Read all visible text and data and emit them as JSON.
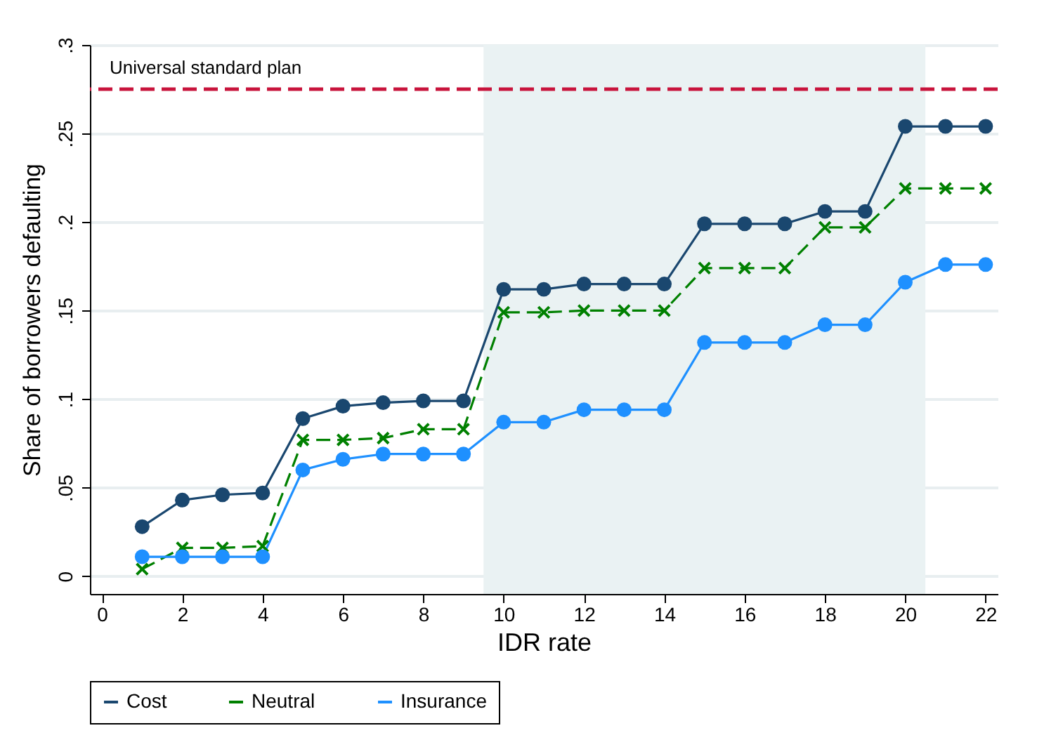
{
  "chart_data": {
    "type": "line",
    "xlabel": "IDR rate",
    "ylabel": "Share of borrowers defaulting",
    "x": [
      1,
      2,
      3,
      4,
      5,
      6,
      7,
      8,
      9,
      10,
      11,
      12,
      13,
      14,
      15,
      16,
      17,
      18,
      19,
      20,
      21,
      22
    ],
    "series": [
      {
        "name": "Cost",
        "color": "#1a476f",
        "marker": "circle",
        "line_style": "solid",
        "values": [
          0.028,
          0.043,
          0.046,
          0.047,
          0.089,
          0.096,
          0.098,
          0.099,
          0.099,
          0.162,
          0.162,
          0.165,
          0.165,
          0.165,
          0.199,
          0.199,
          0.199,
          0.206,
          0.206,
          0.254,
          0.254,
          0.254
        ]
      },
      {
        "name": "Neutral",
        "color": "#008000",
        "marker": "cross",
        "line_style": "dashed",
        "values": [
          0.004,
          0.016,
          0.016,
          0.017,
          0.077,
          0.077,
          0.078,
          0.083,
          0.083,
          0.149,
          0.149,
          0.15,
          0.15,
          0.15,
          0.174,
          0.174,
          0.174,
          0.197,
          0.197,
          0.219,
          0.219,
          0.219
        ]
      },
      {
        "name": "Insurance",
        "color": "#1e90ff",
        "marker": "circle",
        "line_style": "solid",
        "values": [
          0.011,
          0.011,
          0.011,
          0.011,
          0.06,
          0.066,
          0.069,
          0.069,
          0.069,
          0.087,
          0.087,
          0.094,
          0.094,
          0.094,
          0.132,
          0.132,
          0.132,
          0.142,
          0.142,
          0.166,
          0.176,
          0.176
        ]
      }
    ],
    "xlim": [
      -0.3,
      22.3
    ],
    "xticks": [
      0,
      2,
      4,
      6,
      8,
      10,
      12,
      14,
      16,
      18,
      20,
      22
    ],
    "ylim": [
      -0.01,
      0.3
    ],
    "yticks": [
      0,
      {
        "value": 0.05,
        "label": ".05"
      },
      {
        "value": 0.1,
        "label": ".1"
      },
      {
        "value": 0.15,
        "label": ".15"
      },
      {
        "value": 0.2,
        "label": ".2"
      },
      {
        "value": 0.25,
        "label": ".25"
      },
      {
        "value": 0.3,
        "label": ".3"
      }
    ],
    "ref_lines": [
      {
        "axis": "y",
        "value": 0.275,
        "label": "Universal standard plan",
        "color": "#c8143c",
        "line_style": "dashed"
      }
    ],
    "bands": [
      {
        "axis": "x",
        "from": 9.5,
        "to": 20.5,
        "color": "#eaf2f3"
      }
    ],
    "grid": "y",
    "legend": "bottom"
  }
}
